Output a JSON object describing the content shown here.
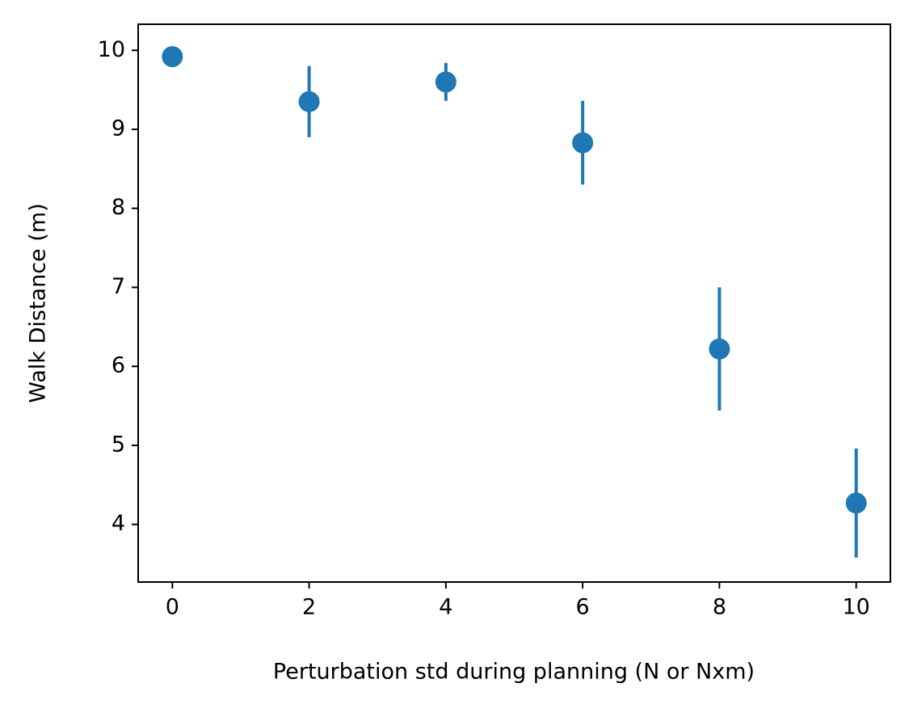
{
  "chart_data": {
    "type": "scatter",
    "xlabel": "Perturbation std during planning (N or Nxm)",
    "ylabel": "Walk Distance (m)",
    "x": [
      0,
      2,
      4,
      6,
      8,
      10
    ],
    "values": [
      9.92,
      9.35,
      9.6,
      8.83,
      6.22,
      4.27
    ],
    "errors": [
      0,
      0.45,
      0.24,
      0.53,
      0.78,
      0.69
    ],
    "color": "#1f77b4",
    "xlim": [
      -0.5,
      10.5
    ],
    "xticks": [
      0,
      2,
      4,
      6,
      8,
      10
    ],
    "ylim": [
      3.27,
      10.33
    ],
    "yticks": [
      4,
      5,
      6,
      7,
      8,
      9,
      10
    ],
    "grid": false
  }
}
